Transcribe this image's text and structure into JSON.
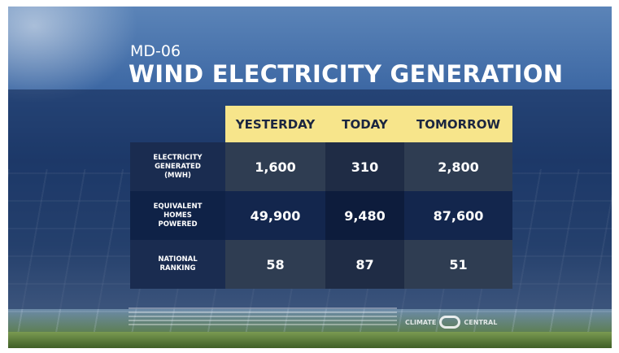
{
  "header": {
    "code": "MD-06",
    "title": "WIND ELECTRICITY GENERATION"
  },
  "table": {
    "columns": [
      "YESTERDAY",
      "TODAY",
      "TOMORROW"
    ],
    "rows": [
      {
        "label": [
          "ELECTRICITY",
          "GENERATED",
          "(MWH)"
        ],
        "values": [
          "1,600",
          "310",
          "2,800"
        ]
      },
      {
        "label": [
          "EQUIVALENT",
          "HOMES",
          "POWERED"
        ],
        "values": [
          "49,900",
          "9,480",
          "87,600"
        ]
      },
      {
        "label": [
          "NATIONAL",
          "RANKING"
        ],
        "values": [
          "58",
          "87",
          "51"
        ]
      }
    ]
  },
  "footer": {
    "logo_left": "CLIMATE",
    "logo_right": "CENTRAL"
  }
}
